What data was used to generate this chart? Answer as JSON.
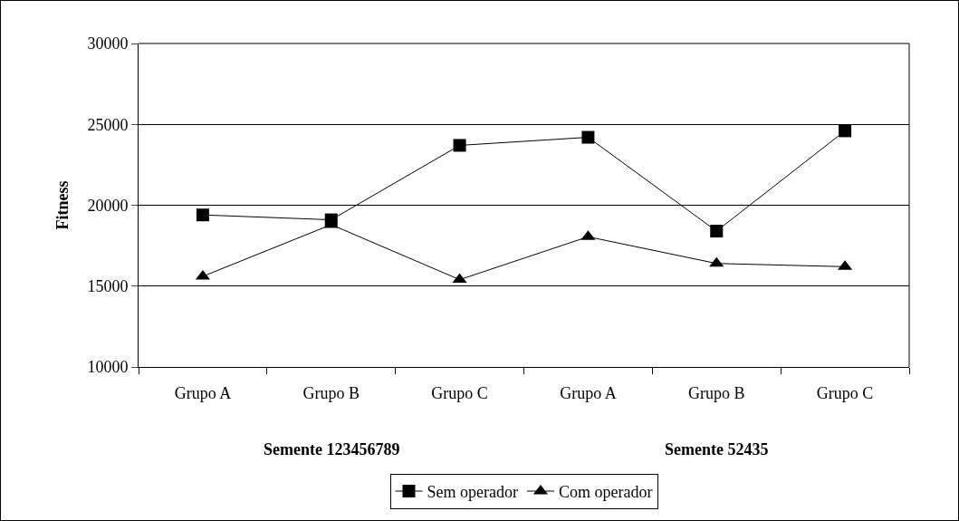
{
  "chart_data": {
    "type": "line",
    "ylabel": "Fitness",
    "categories": [
      "Grupo A",
      "Grupo B",
      "Grupo C",
      "Grupo A",
      "Grupo B",
      "Grupo C"
    ],
    "series": [
      {
        "name": "Sem operador",
        "color": "#000000",
        "marker": "square",
        "values": [
          19400,
          19100,
          23700,
          24200,
          18400,
          24600
        ]
      },
      {
        "name": "Com operador",
        "color": "#000000",
        "marker": "triangle",
        "values": [
          15600,
          18800,
          15400,
          18050,
          16400,
          16200
        ]
      }
    ],
    "ylim": [
      10000,
      30000
    ],
    "yticks": [
      10000,
      15000,
      20000,
      25000,
      30000
    ],
    "grid": "y",
    "legend": "bottom",
    "line_style": "solid",
    "annotations": [
      "Semente 123456789",
      "Semente 52435"
    ]
  }
}
